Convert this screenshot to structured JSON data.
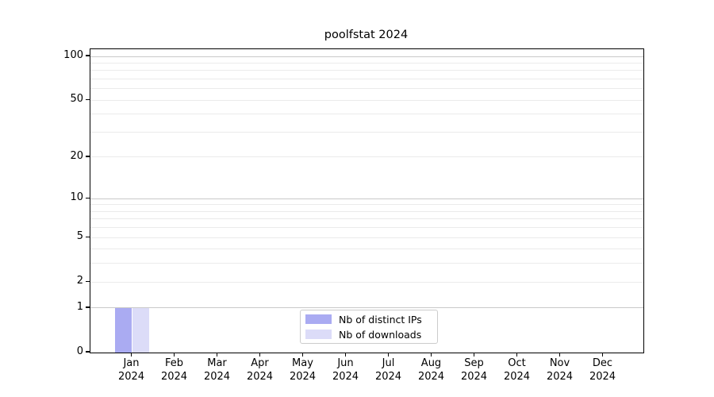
{
  "chart_data": {
    "type": "bar",
    "title": "poolfstat 2024",
    "categories": [
      "Jan 2024",
      "Feb 2024",
      "Mar 2024",
      "Apr 2024",
      "May 2024",
      "Jun 2024",
      "Jul 2024",
      "Aug 2024",
      "Sep 2024",
      "Oct 2024",
      "Nov 2024",
      "Dec 2024"
    ],
    "series": [
      {
        "name": "Nb of distinct IPs",
        "color": "#aaabf2",
        "values": [
          1,
          0,
          0,
          0,
          0,
          0,
          0,
          0,
          0,
          0,
          0,
          0
        ]
      },
      {
        "name": "Nb of downloads",
        "color": "#dcdcf8",
        "values": [
          1,
          0,
          0,
          0,
          0,
          0,
          0,
          0,
          0,
          0,
          0,
          0
        ]
      }
    ],
    "xlabel": "",
    "ylabel": "",
    "yscale": "log1p",
    "ylim": [
      0,
      112
    ],
    "yticks": [
      0,
      1,
      2,
      5,
      10,
      20,
      50,
      100
    ],
    "grid_major": [
      1,
      10,
      100
    ],
    "grid_minor": [
      2,
      3,
      4,
      5,
      6,
      7,
      8,
      9,
      20,
      30,
      40,
      50,
      60,
      70,
      80,
      90
    ],
    "grid": "on",
    "legend_position": "lower center"
  }
}
